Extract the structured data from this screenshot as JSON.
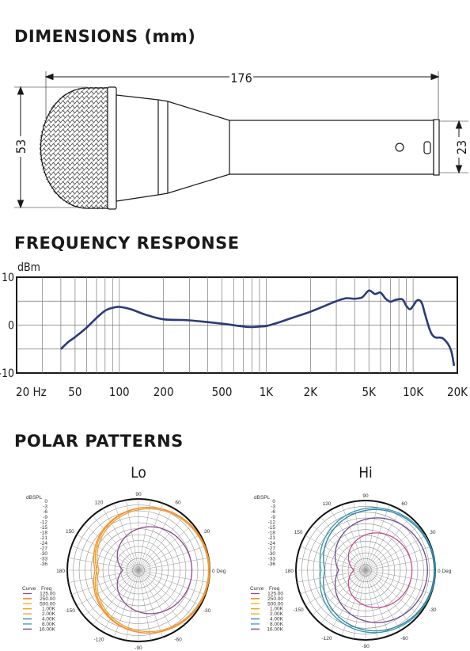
{
  "sections": {
    "dimensions_title": "DIMENSIONS (mm)",
    "frequency_title": "FREQUENCY RESPONSE",
    "polar_title": "POLAR PATTERNS"
  },
  "dimensions": {
    "length": "176",
    "head_diameter": "53",
    "handle_diameter": "23"
  },
  "chart_data": [
    {
      "type": "line",
      "title": "FREQUENCY RESPONSE",
      "ylabel": "dBm",
      "xscale": "log",
      "xlim": [
        20,
        20000
      ],
      "ylim": [
        -10,
        10
      ],
      "yticks": [
        "10",
        "0",
        "-10"
      ],
      "xticks": [
        {
          "v": 20,
          "label": "20  Hz"
        },
        {
          "v": 50,
          "label": "50"
        },
        {
          "v": 100,
          "label": "100"
        },
        {
          "v": 200,
          "label": "200"
        },
        {
          "v": 500,
          "label": "500"
        },
        {
          "v": 1000,
          "label": "1K"
        },
        {
          "v": 2000,
          "label": "2K"
        },
        {
          "v": 5000,
          "label": "5K"
        },
        {
          "v": 10000,
          "label": "10K"
        },
        {
          "v": 20000,
          "label": "20K"
        }
      ],
      "grid": true,
      "color": "#2b3a7a",
      "x": [
        40,
        45,
        50,
        60,
        70,
        80,
        90,
        100,
        120,
        150,
        200,
        300,
        500,
        700,
        800,
        900,
        1000,
        1200,
        1500,
        2000,
        2500,
        3000,
        3500,
        4000,
        4500,
        5000,
        5500,
        6000,
        6500,
        7000,
        7500,
        8000,
        8500,
        9000,
        9500,
        10000,
        10500,
        11000,
        11500,
        12000,
        13000,
        14000,
        16000,
        18000,
        19000
      ],
      "y": [
        -5,
        -3.5,
        -2.5,
        -0.5,
        1.5,
        3,
        3.6,
        3.8,
        3.3,
        2.2,
        1.2,
        1.0,
        0.3,
        -0.3,
        -0.4,
        -0.3,
        -0.2,
        0.5,
        1.5,
        2.8,
        4.0,
        5.0,
        5.6,
        5.5,
        5.8,
        7.2,
        6.5,
        6.8,
        5.5,
        4.9,
        5.2,
        5.4,
        5.3,
        4.0,
        3.3,
        4.0,
        5.0,
        5.2,
        4.5,
        2.5,
        -1.0,
        -2.5,
        -2.8,
        -5,
        -8.5
      ]
    },
    {
      "type": "polar",
      "title": "Lo",
      "rlabel": "dBSPL",
      "rticks": [
        "0",
        "-3",
        "-6",
        "-9",
        "-12",
        "-15",
        "-18",
        "-21",
        "-24",
        "-27",
        "-30",
        "-33",
        "-36"
      ],
      "angle_labels": {
        "a90": "90",
        "a60": "60",
        "a30": "30",
        "a0": "0 Deg",
        "an30": "-30",
        "an60": "-60",
        "an90": "-90",
        "an120": "-120",
        "an150": "-150",
        "a180": "180",
        "a150": "150",
        "a120": "120"
      },
      "legend_header": [
        "Curve",
        "Freq"
      ],
      "legend": [
        "125.00",
        "250.00",
        "500.00",
        "1.00K",
        "2.00K",
        "4.00K",
        "8.00K",
        "16.00K"
      ],
      "legend_colors": [
        "#8b4a8b",
        "#ff6a00",
        "#f5b700",
        "#f0a000",
        "#e2a24a",
        "#2f7fa0",
        "#2f9aa8",
        "#7a4a8a"
      ],
      "curves": [
        {
          "color": "#f0a000",
          "front": 0,
          "rear": -15
        },
        {
          "color": "#ff8a30",
          "front": -0.3,
          "rear": -14
        },
        {
          "color": "#e2a24a",
          "front": -0.6,
          "rear": -16
        },
        {
          "color": "#8b4a8b",
          "front": -9,
          "rear": -28
        }
      ]
    },
    {
      "type": "polar",
      "title": "Hi",
      "rlabel": "dBSPL",
      "rticks": [
        "0",
        "-3",
        "-6",
        "-9",
        "-12",
        "-15",
        "-18",
        "-21",
        "-24",
        "-27",
        "-30",
        "-33",
        "-36"
      ],
      "angle_labels": {
        "a90": "90",
        "a60": "60",
        "a30": "30",
        "a0": "0 Deg",
        "an30": "-30",
        "an60": "-60",
        "an90": "-90",
        "an120": "-120",
        "an150": "-150",
        "a180": "180",
        "a150": "150",
        "a120": "120"
      },
      "legend_header": [
        "Curve",
        "Freq"
      ],
      "legend": [
        "125.00",
        "250.00",
        "500.00",
        "1.00K",
        "2.00K",
        "4.00K",
        "8.00K",
        "16.00K"
      ],
      "legend_colors": [
        "#8b4a8b",
        "#ff6a00",
        "#f5b700",
        "#f0a000",
        "#e2a24a",
        "#2f7fa0",
        "#2f9aa8",
        "#7a4a8a"
      ],
      "curves": [
        {
          "color": "#2f9aa8",
          "front": 0,
          "rear": -13
        },
        {
          "color": "#2f7fa0",
          "front": -0.5,
          "rear": -15
        },
        {
          "color": "#6a4a8a",
          "front": -4,
          "rear": -22
        },
        {
          "color": "#c0508a",
          "front": -12,
          "rear": -30
        }
      ]
    }
  ]
}
